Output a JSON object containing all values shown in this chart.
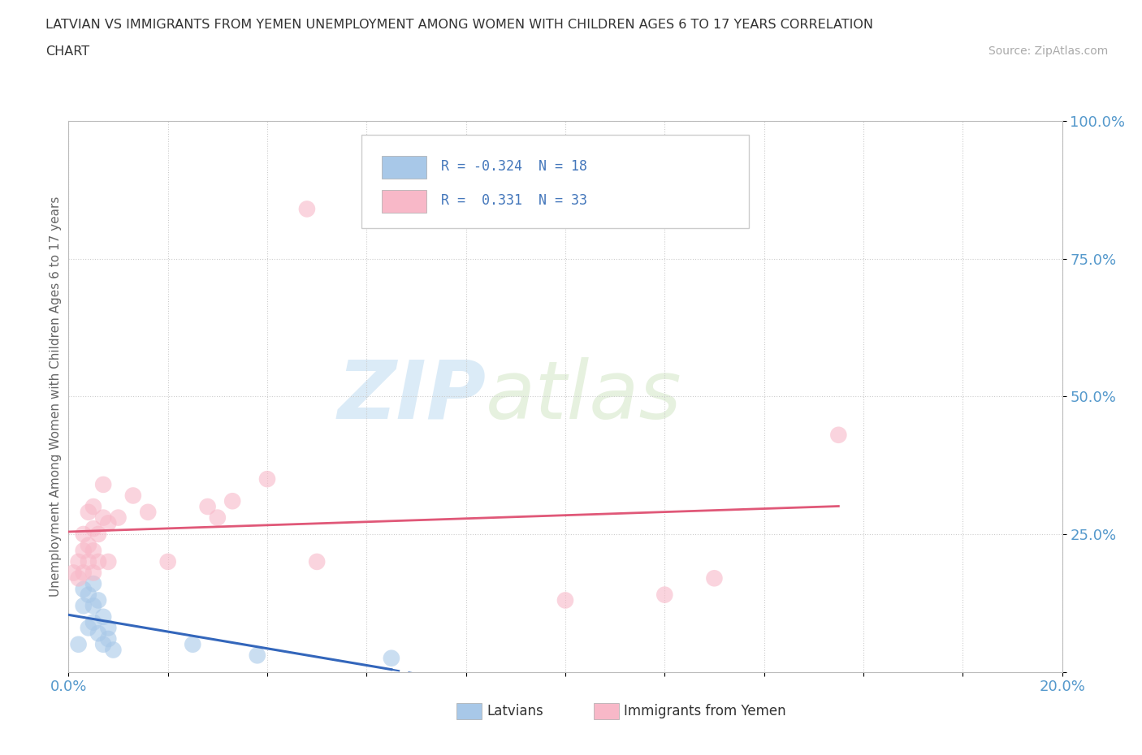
{
  "title_line1": "LATVIAN VS IMMIGRANTS FROM YEMEN UNEMPLOYMENT AMONG WOMEN WITH CHILDREN AGES 6 TO 17 YEARS CORRELATION",
  "title_line2": "CHART",
  "source": "Source: ZipAtlas.com",
  "ylabel": "Unemployment Among Women with Children Ages 6 to 17 years",
  "xlim": [
    0.0,
    0.2
  ],
  "ylim": [
    0.0,
    1.0
  ],
  "xticks": [
    0.0,
    0.02,
    0.04,
    0.06,
    0.08,
    0.1,
    0.12,
    0.14,
    0.16,
    0.18,
    0.2
  ],
  "yticks": [
    0.0,
    0.25,
    0.5,
    0.75,
    1.0
  ],
  "latvian_R": -0.324,
  "latvian_N": 18,
  "yemen_R": 0.331,
  "yemen_N": 33,
  "latvian_color": "#a8c8e8",
  "latvian_line_color": "#3366bb",
  "yemen_color": "#f8b8c8",
  "yemen_line_color": "#e05878",
  "watermark_zip": "ZIP",
  "watermark_atlas": "atlas",
  "background_color": "#ffffff",
  "grid_color": "#cccccc",
  "tick_label_color": "#5599cc",
  "title_color": "#333333",
  "axis_label_color": "#666666",
  "latvians_x": [
    0.002,
    0.003,
    0.003,
    0.004,
    0.004,
    0.005,
    0.005,
    0.005,
    0.006,
    0.006,
    0.007,
    0.007,
    0.008,
    0.008,
    0.009,
    0.025,
    0.038,
    0.065
  ],
  "latvians_y": [
    0.05,
    0.12,
    0.15,
    0.08,
    0.14,
    0.12,
    0.16,
    0.09,
    0.07,
    0.13,
    0.1,
    0.05,
    0.08,
    0.06,
    0.04,
    0.05,
    0.03,
    0.025
  ],
  "yemen_x": [
    0.001,
    0.002,
    0.002,
    0.003,
    0.003,
    0.003,
    0.004,
    0.004,
    0.004,
    0.005,
    0.005,
    0.005,
    0.005,
    0.006,
    0.006,
    0.007,
    0.007,
    0.008,
    0.008,
    0.01,
    0.013,
    0.016,
    0.02,
    0.028,
    0.03,
    0.033,
    0.04,
    0.05,
    0.1,
    0.12,
    0.13,
    0.155,
    0.048
  ],
  "yemen_y": [
    0.18,
    0.2,
    0.17,
    0.22,
    0.25,
    0.18,
    0.2,
    0.23,
    0.29,
    0.18,
    0.22,
    0.26,
    0.3,
    0.2,
    0.25,
    0.28,
    0.34,
    0.2,
    0.27,
    0.28,
    0.32,
    0.29,
    0.2,
    0.3,
    0.28,
    0.31,
    0.35,
    0.2,
    0.13,
    0.14,
    0.17,
    0.43,
    0.84
  ],
  "legend_text_color": "#4477bb",
  "legend_r_color": "#222222"
}
